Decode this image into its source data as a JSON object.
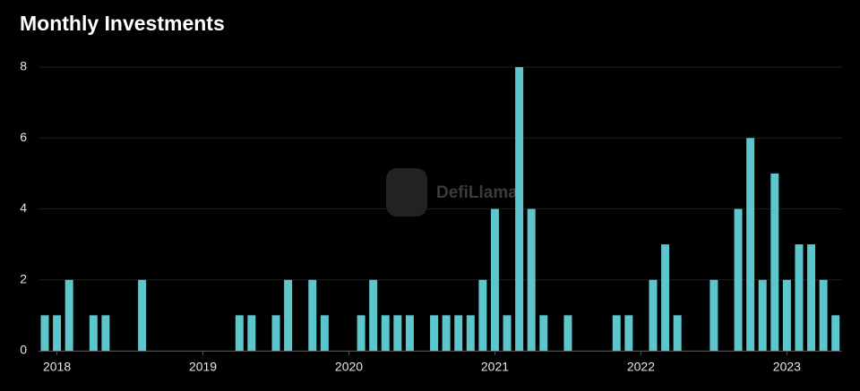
{
  "chart_data": {
    "type": "bar",
    "title": "Monthly Investments",
    "watermark": "DefiLlama",
    "categories": [
      null,
      "2018",
      null,
      null,
      null,
      null,
      null,
      null,
      null,
      null,
      null,
      null,
      null,
      "2019",
      null,
      null,
      null,
      null,
      null,
      null,
      null,
      null,
      null,
      null,
      null,
      "2020",
      null,
      null,
      null,
      null,
      null,
      null,
      null,
      null,
      null,
      null,
      null,
      "2021",
      null,
      null,
      null,
      null,
      null,
      null,
      null,
      null,
      null,
      null,
      null,
      "2022",
      null,
      null,
      null,
      null,
      null,
      null,
      null,
      null,
      null,
      null,
      null,
      "2023",
      null,
      null,
      null,
      null
    ],
    "values": [
      1,
      1,
      2,
      0,
      1,
      1,
      0,
      0,
      2,
      0,
      0,
      0,
      0,
      0,
      0,
      0,
      1,
      1,
      0,
      1,
      2,
      0,
      2,
      1,
      0,
      0,
      1,
      2,
      1,
      1,
      1,
      0,
      1,
      1,
      1,
      1,
      2,
      4,
      1,
      8,
      4,
      1,
      0,
      1,
      0,
      0,
      0,
      1,
      1,
      0,
      2,
      3,
      1,
      0,
      0,
      2,
      0,
      4,
      6,
      2,
      5,
      2,
      3,
      3,
      2,
      1
    ],
    "color": "#5cc6cc",
    "ylim": [
      0,
      8
    ],
    "yticks": [
      0,
      2,
      4,
      6,
      8
    ],
    "grid": true
  }
}
